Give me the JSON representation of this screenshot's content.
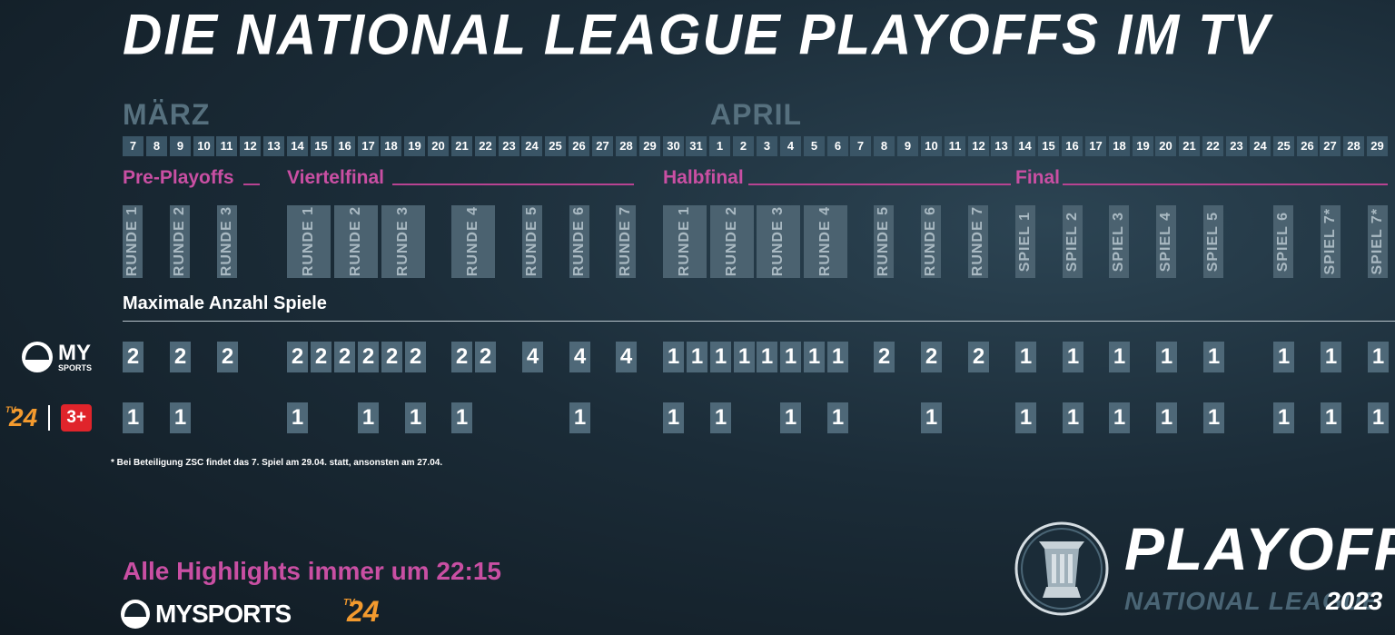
{
  "title": "DIE NATIONAL LEAGUE PLAYOFFS IM TV",
  "months": [
    "MÄRZ",
    "APRIL"
  ],
  "days": [
    "7",
    "8",
    "9",
    "10",
    "11",
    "12",
    "13",
    "14",
    "15",
    "16",
    "17",
    "18",
    "19",
    "20",
    "21",
    "22",
    "23",
    "24",
    "25",
    "26",
    "27",
    "28",
    "29",
    "30",
    "31",
    "1",
    "2",
    "3",
    "4",
    "5",
    "6",
    "7",
    "8",
    "9",
    "10",
    "11",
    "12",
    "13",
    "14",
    "15",
    "16",
    "17",
    "18",
    "19",
    "20",
    "21",
    "22",
    "23",
    "24",
    "25",
    "26",
    "27",
    "28",
    "29"
  ],
  "stages": [
    "Pre-Playoffs",
    "Viertelfinal",
    "Halbfinal",
    "Final"
  ],
  "rounds": [
    "RUNDE 1",
    "RUNDE 2",
    "RUNDE 3",
    "RUNDE 1",
    "RUNDE 2",
    "RUNDE 3",
    "RUNDE 4",
    "RUNDE 5",
    "RUNDE 6",
    "RUNDE 7",
    "RUNDE 1",
    "RUNDE 2",
    "RUNDE 3",
    "RUNDE 4",
    "RUNDE 5",
    "RUNDE 6",
    "RUNDE 7",
    "SPIEL 1",
    "SPIEL 2",
    "SPIEL 3",
    "SPIEL 4",
    "SPIEL 5",
    "SPIEL 6",
    "SPIEL 7*",
    "SPIEL 7*"
  ],
  "max_title": "Maximale Anzahl Spiele",
  "broadcasters": {
    "mysports_line1": "MY",
    "mysports_line2": "SPORTS",
    "tv24": "24",
    "tv_prefix": "TV",
    "three_plus": "3+"
  },
  "mysports_counts": [
    "2",
    "2",
    "2",
    "2",
    "2",
    "2",
    "2",
    "2",
    "2",
    "2",
    "2",
    "4",
    "4",
    "4",
    "1",
    "1",
    "1",
    "1",
    "1",
    "1",
    "1",
    "1",
    "2",
    "2",
    "2",
    "1",
    "1",
    "1",
    "1",
    "1",
    "1",
    "1",
    "1"
  ],
  "tv24_counts": [
    "1",
    "1",
    "1",
    "1",
    "1",
    "1",
    "1",
    "1",
    "1",
    "1",
    "1",
    "1",
    "1",
    "1",
    "1",
    "1",
    "1",
    "1",
    "1",
    "1"
  ],
  "footnote": "* Bei Beteiligung ZSC findet das 7. Spiel am 29.04. statt, ansonsten am 27.04.",
  "highlights": "Alle Highlights immer um 22:15",
  "bottom_logo_mysports": "MYSPORTS",
  "bottom_logo_tv24": "24",
  "brand": {
    "playoffs": "PLAYOFFS",
    "league": "NATIONAL LEAGUE",
    "year": "2023"
  },
  "colors": {
    "accent": "#c94fa3",
    "tile": "#4e6878",
    "day_tile": "#3a5566",
    "tv24": "#f39a2e",
    "three_plus": "#e0242b"
  }
}
